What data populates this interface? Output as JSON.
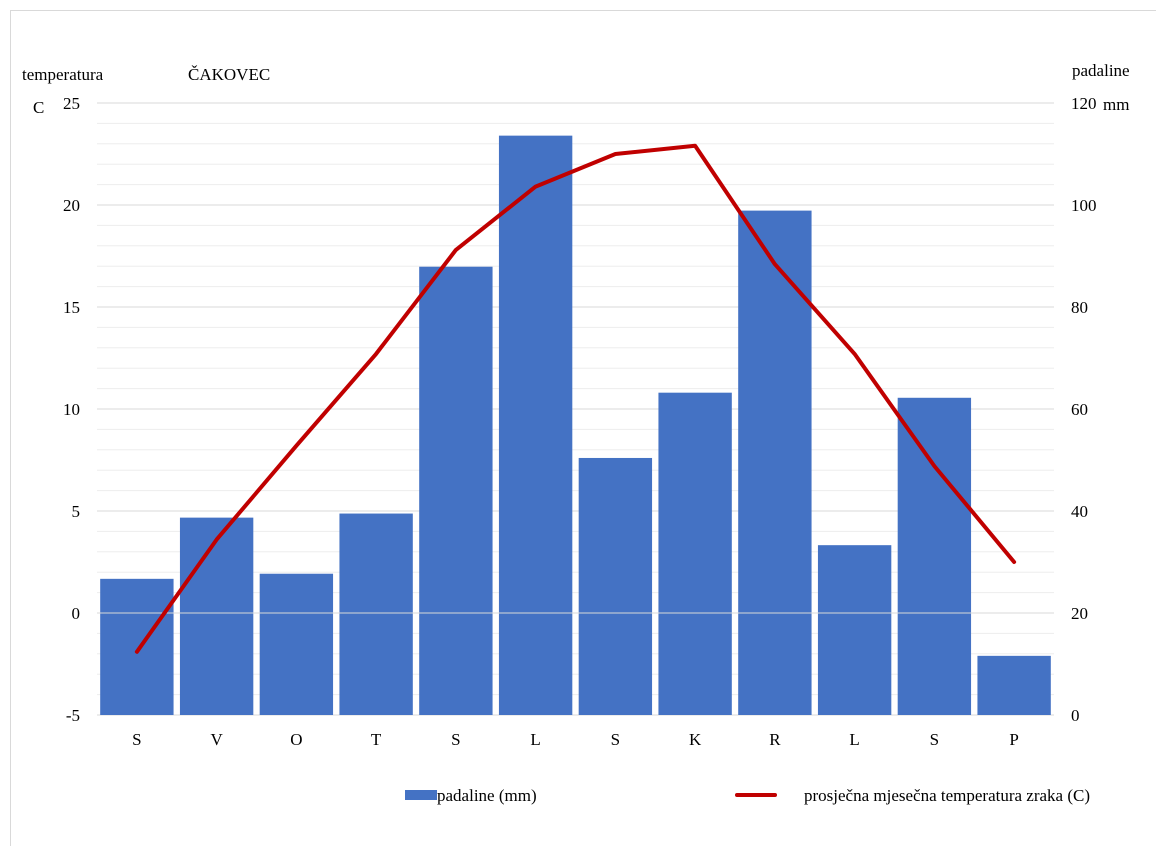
{
  "chart_data": {
    "type": "bar+line",
    "title": "ČAKOVEC",
    "categories": [
      "S",
      "V",
      "O",
      "T",
      "S",
      "L",
      "S",
      "K",
      "R",
      "L",
      "S",
      "P"
    ],
    "left_axis": {
      "label_top": "temperatura",
      "unit": "C",
      "ylim": [
        -5,
        25
      ],
      "ticks": [
        -5,
        0,
        5,
        10,
        15,
        20,
        25
      ]
    },
    "right_axis": {
      "label_top": "padaline",
      "unit": "mm",
      "ylim": [
        0,
        120
      ],
      "ticks": [
        0,
        20,
        40,
        60,
        80,
        100,
        120
      ]
    },
    "series": [
      {
        "name": "padaline (mm)",
        "kind": "bar",
        "axis": "right",
        "color": "#4472c4",
        "values": [
          26.7,
          38.7,
          27.7,
          39.5,
          87.9,
          113.6,
          50.4,
          63.2,
          98.9,
          33.3,
          62.2,
          11.6
        ]
      },
      {
        "name": "prosječna mjesečna temperatura zraka (C)",
        "kind": "line",
        "axis": "left",
        "color": "#c00000",
        "values": [
          -1.9,
          3.6,
          8.2,
          12.7,
          17.8,
          20.9,
          22.5,
          22.9,
          17.1,
          12.7,
          7.2,
          2.5
        ]
      }
    ],
    "gridlines": true,
    "legend_position": "bottom"
  }
}
